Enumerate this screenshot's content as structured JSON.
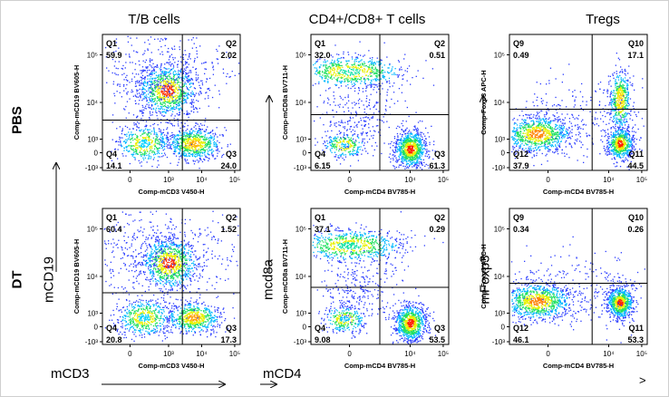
{
  "column_titles": [
    "T/B cells",
    "CD4+/CD8+ T cells",
    "Tregs"
  ],
  "row_labels": [
    "PBS",
    "DT"
  ],
  "axis_captions": {
    "col1_y": "mCD19",
    "col1_x": "mCD3",
    "col2_y": "mcd8a",
    "col2_x": "mCD4",
    "col3_y": "mFoxp3",
    "col3_x": ">"
  },
  "colors": {
    "density_low": "#1f3dff",
    "density_mid": "#00c0ff",
    "density_high": "#ff2a00",
    "gate_line": "#000000"
  },
  "chart_data": [
    {
      "type": "scatter",
      "panel": "T/B cells - PBS",
      "xlabel": "Comp-mCD3 V450-H",
      "ylabel": "Comp-mCD19 BV605-H",
      "x_ticks": [
        "0",
        "10³",
        "10⁴",
        "10⁵"
      ],
      "y_ticks": [
        "-10³",
        "0",
        "10³",
        "10⁴",
        "10⁵"
      ],
      "quadrants": [
        {
          "name": "Q1",
          "value": "59.9"
        },
        {
          "name": "Q2",
          "value": "2.02"
        },
        {
          "name": "Q3",
          "value": "24.0"
        },
        {
          "name": "Q4",
          "value": "14.1"
        }
      ]
    },
    {
      "type": "scatter",
      "panel": "CD4+/CD8+ T cells - PBS",
      "xlabel": "Comp-mCD4 BV785-H",
      "ylabel": "Comp-mCD8a BV711-H",
      "x_ticks": [
        "0",
        "10⁴",
        "10⁵"
      ],
      "y_ticks": [
        "-10³",
        "0",
        "10³",
        "10⁴",
        "10⁵"
      ],
      "quadrants": [
        {
          "name": "Q1",
          "value": "32.0"
        },
        {
          "name": "Q2",
          "value": "0.51"
        },
        {
          "name": "Q3",
          "value": "61.3"
        },
        {
          "name": "Q4",
          "value": "6.15"
        }
      ]
    },
    {
      "type": "scatter",
      "panel": "Tregs - PBS",
      "xlabel": "Comp-mCD4 BV785-H",
      "ylabel": "Comp-Foxp3 APC-H",
      "x_ticks": [
        "0",
        "10⁴",
        "10⁵"
      ],
      "y_ticks": [
        "-10³",
        "0",
        "10³",
        "10⁴",
        "10⁵"
      ],
      "quadrants": [
        {
          "name": "Q9",
          "value": "0.49"
        },
        {
          "name": "Q10",
          "value": "17.1"
        },
        {
          "name": "Q11",
          "value": "44.5"
        },
        {
          "name": "Q12",
          "value": "37.9"
        }
      ]
    },
    {
      "type": "scatter",
      "panel": "T/B cells - DT",
      "xlabel": "Comp-mCD3 V450-H",
      "ylabel": "Comp-mCD19 BV605-H",
      "x_ticks": [
        "0",
        "10³",
        "10⁴",
        "10⁵"
      ],
      "y_ticks": [
        "-10³",
        "0",
        "10³",
        "10⁴",
        "10⁵"
      ],
      "quadrants": [
        {
          "name": "Q1",
          "value": "60.4"
        },
        {
          "name": "Q2",
          "value": "1.52"
        },
        {
          "name": "Q3",
          "value": "17.3"
        },
        {
          "name": "Q4",
          "value": "20.8"
        }
      ]
    },
    {
      "type": "scatter",
      "panel": "CD4+/CD8+ T cells - DT",
      "xlabel": "Comp-mCD4 BV785-H",
      "ylabel": "Comp-mCD8a BV711-H",
      "x_ticks": [
        "0",
        "10⁴",
        "10⁵"
      ],
      "y_ticks": [
        "-10³",
        "0",
        "10³",
        "10⁴",
        "10⁵"
      ],
      "quadrants": [
        {
          "name": "Q1",
          "value": "37.1"
        },
        {
          "name": "Q2",
          "value": "0.29"
        },
        {
          "name": "Q3",
          "value": "53.5"
        },
        {
          "name": "Q4",
          "value": "9.08"
        }
      ]
    },
    {
      "type": "scatter",
      "panel": "Tregs - DT",
      "xlabel": "Comp-mCD4 BV785-H",
      "ylabel": "Comp-Foxp3 APC-H",
      "x_ticks": [
        "0",
        "10⁴",
        "10⁵"
      ],
      "y_ticks": [
        "-10³",
        "0",
        "10³",
        "10⁴",
        "10⁵"
      ],
      "quadrants": [
        {
          "name": "Q9",
          "value": "0.34"
        },
        {
          "name": "Q10",
          "value": "0.26"
        },
        {
          "name": "Q11",
          "value": "53.3"
        },
        {
          "name": "Q12",
          "value": "46.1"
        }
      ]
    }
  ]
}
